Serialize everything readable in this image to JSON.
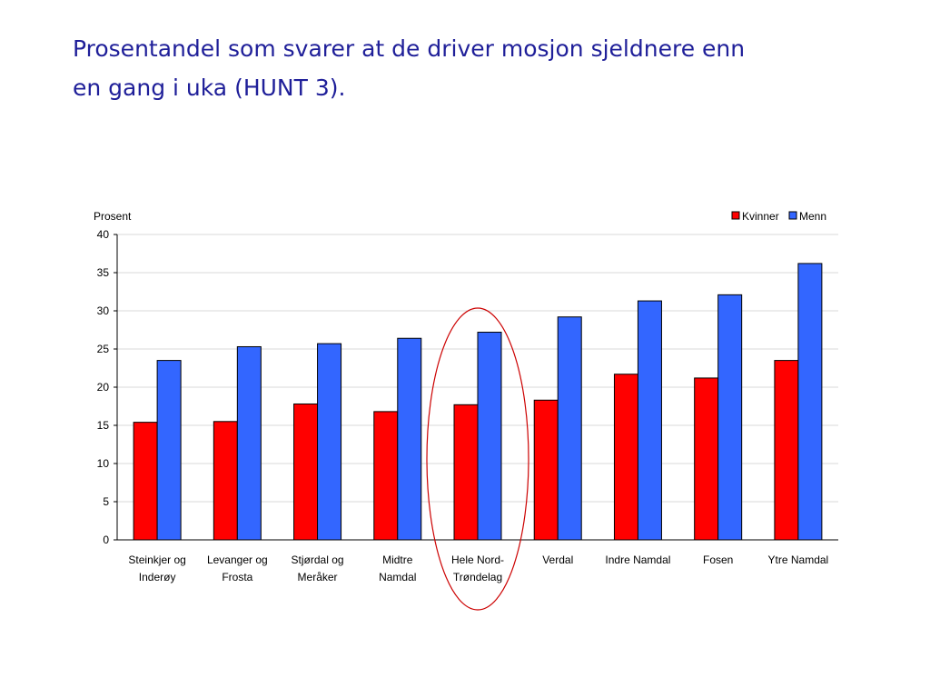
{
  "title": {
    "line1": "Prosentandel som svarer at de driver mosjon sjeldnere enn",
    "line2": "en gang i uka (HUNT 3)."
  },
  "chart_data": {
    "type": "bar",
    "ylabel": "Prosent",
    "xlabel": "",
    "ylim": [
      0,
      40
    ],
    "yticks": [
      0,
      5,
      10,
      15,
      20,
      25,
      30,
      35,
      40
    ],
    "grid": true,
    "legend_position": "top-right",
    "categories": [
      [
        "Steinkjer og",
        "Inderøy"
      ],
      [
        "Levanger og",
        "Frosta"
      ],
      [
        "Stjørdal og",
        "Meråker"
      ],
      [
        "Midtre",
        "Namdal"
      ],
      [
        "Hele Nord-",
        "Trøndelag"
      ],
      [
        "Verdal"
      ],
      [
        "Indre Namdal"
      ],
      [
        "Fosen"
      ],
      [
        "Ytre Namdal"
      ]
    ],
    "series": [
      {
        "name": "Kvinner",
        "color": "#ff0000",
        "values": [
          15.4,
          15.5,
          17.8,
          16.8,
          17.7,
          18.3,
          21.7,
          21.2,
          23.5
        ]
      },
      {
        "name": "Menn",
        "color": "#3366ff",
        "values": [
          23.5,
          25.3,
          25.7,
          26.4,
          27.2,
          29.2,
          31.3,
          32.1,
          36.2
        ]
      }
    ],
    "highlight_category_index": 4,
    "highlight_color": "#cc0000"
  }
}
